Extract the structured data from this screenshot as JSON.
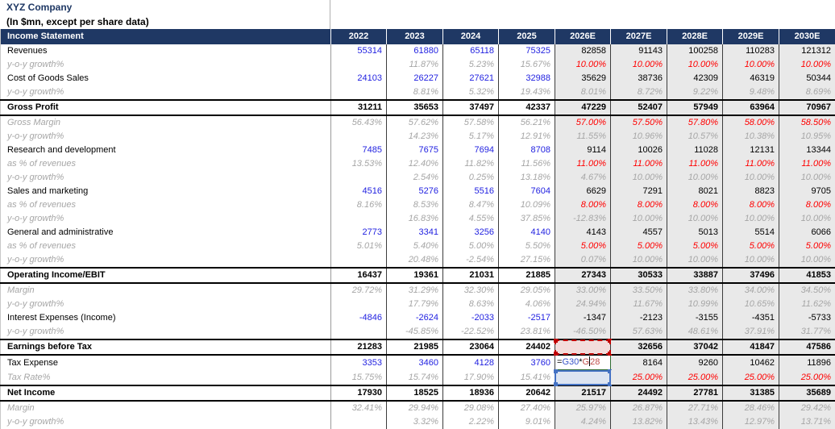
{
  "title": "XYZ Company",
  "subtitle": "(In $mn, except per share data)",
  "colors": {
    "header_navy": "#1F3864",
    "input_blue": "#1F1FE0",
    "muted_gray": "#A6A6A6",
    "assumption_red": "#FF0000",
    "estimate_bg": "#E9E9E9",
    "selection_red": "#C00000",
    "selection_blue": "#4472C4",
    "formula_green": "#2E6B30"
  },
  "header": {
    "label": "Income Statement",
    "years": [
      "2022",
      "2023",
      "2024",
      "2025",
      "2026E",
      "2027E",
      "2028E",
      "2029E",
      "2030E"
    ],
    "estimate_start_index": 4
  },
  "formula": {
    "parts": [
      {
        "t": "=",
        "c": "black"
      },
      {
        "t": "G30",
        "c": "blue"
      },
      {
        "t": "*",
        "c": "black"
      },
      {
        "t": "G",
        "c": "red"
      },
      {
        "cursor": true
      },
      {
        "t": "28",
        "c": "red"
      }
    ]
  },
  "rows": [
    {
      "label": "Revenues",
      "type": "item",
      "cells": [
        {
          "t": "55314",
          "s": "b"
        },
        {
          "t": "61880",
          "s": "b"
        },
        {
          "t": "65118",
          "s": "b"
        },
        {
          "t": "75325",
          "s": "b"
        },
        {
          "t": "82858",
          "s": "k"
        },
        {
          "t": "91143",
          "s": "k"
        },
        {
          "t": "100258",
          "s": "k"
        },
        {
          "t": "110283",
          "s": "k"
        },
        {
          "t": "121312",
          "s": "k"
        }
      ]
    },
    {
      "label": "y-o-y growth%",
      "type": "sub",
      "cells": [
        {
          "t": "",
          "s": "g"
        },
        {
          "t": "11.87%",
          "s": "g"
        },
        {
          "t": "5.23%",
          "s": "g"
        },
        {
          "t": "15.67%",
          "s": "g"
        },
        {
          "t": "10.00%",
          "s": "r"
        },
        {
          "t": "10.00%",
          "s": "r"
        },
        {
          "t": "10.00%",
          "s": "r"
        },
        {
          "t": "10.00%",
          "s": "r"
        },
        {
          "t": "10.00%",
          "s": "r"
        }
      ]
    },
    {
      "label": "Cost of Goods Sales",
      "type": "item",
      "cells": [
        {
          "t": "24103",
          "s": "b"
        },
        {
          "t": "26227",
          "s": "b"
        },
        {
          "t": "27621",
          "s": "b"
        },
        {
          "t": "32988",
          "s": "b"
        },
        {
          "t": "35629",
          "s": "k"
        },
        {
          "t": "38736",
          "s": "k"
        },
        {
          "t": "42309",
          "s": "k"
        },
        {
          "t": "46319",
          "s": "k"
        },
        {
          "t": "50344",
          "s": "k"
        }
      ]
    },
    {
      "label": "y-o-y growth%",
      "type": "sub",
      "cells": [
        {
          "t": "",
          "s": "g"
        },
        {
          "t": "8.81%",
          "s": "g"
        },
        {
          "t": "5.32%",
          "s": "g"
        },
        {
          "t": "19.43%",
          "s": "g"
        },
        {
          "t": "8.01%",
          "s": "g"
        },
        {
          "t": "8.72%",
          "s": "g"
        },
        {
          "t": "9.22%",
          "s": "g"
        },
        {
          "t": "9.48%",
          "s": "g"
        },
        {
          "t": "8.69%",
          "s": "g"
        }
      ]
    },
    {
      "label": "Gross Profit",
      "type": "total",
      "cells": [
        {
          "t": "31211",
          "s": "kb"
        },
        {
          "t": "35653",
          "s": "kb"
        },
        {
          "t": "37497",
          "s": "kb"
        },
        {
          "t": "42337",
          "s": "kb"
        },
        {
          "t": "47229",
          "s": "kb"
        },
        {
          "t": "52407",
          "s": "kb"
        },
        {
          "t": "57949",
          "s": "kb"
        },
        {
          "t": "63964",
          "s": "kb"
        },
        {
          "t": "70967",
          "s": "kb"
        }
      ]
    },
    {
      "label": "Gross Margin",
      "type": "sub",
      "cells": [
        {
          "t": "56.43%",
          "s": "g"
        },
        {
          "t": "57.62%",
          "s": "g"
        },
        {
          "t": "57.58%",
          "s": "g"
        },
        {
          "t": "56.21%",
          "s": "g"
        },
        {
          "t": "57.00%",
          "s": "r"
        },
        {
          "t": "57.50%",
          "s": "r"
        },
        {
          "t": "57.80%",
          "s": "r"
        },
        {
          "t": "58.00%",
          "s": "r"
        },
        {
          "t": "58.50%",
          "s": "r"
        }
      ]
    },
    {
      "label": "y-o-y growth%",
      "type": "sub",
      "cells": [
        {
          "t": "",
          "s": "g"
        },
        {
          "t": "14.23%",
          "s": "g"
        },
        {
          "t": "5.17%",
          "s": "g"
        },
        {
          "t": "12.91%",
          "s": "g"
        },
        {
          "t": "11.55%",
          "s": "g"
        },
        {
          "t": "10.96%",
          "s": "g"
        },
        {
          "t": "10.57%",
          "s": "g"
        },
        {
          "t": "10.38%",
          "s": "g"
        },
        {
          "t": "10.95%",
          "s": "g"
        }
      ]
    },
    {
      "label": "Research and development",
      "type": "item",
      "cells": [
        {
          "t": "7485",
          "s": "b"
        },
        {
          "t": "7675",
          "s": "b"
        },
        {
          "t": "7694",
          "s": "b"
        },
        {
          "t": "8708",
          "s": "b"
        },
        {
          "t": "9114",
          "s": "k"
        },
        {
          "t": "10026",
          "s": "k"
        },
        {
          "t": "11028",
          "s": "k"
        },
        {
          "t": "12131",
          "s": "k"
        },
        {
          "t": "13344",
          "s": "k"
        }
      ]
    },
    {
      "label": "as % of revenues",
      "type": "sub",
      "cells": [
        {
          "t": "13.53%",
          "s": "g"
        },
        {
          "t": "12.40%",
          "s": "g"
        },
        {
          "t": "11.82%",
          "s": "g"
        },
        {
          "t": "11.56%",
          "s": "g"
        },
        {
          "t": "11.00%",
          "s": "r"
        },
        {
          "t": "11.00%",
          "s": "r"
        },
        {
          "t": "11.00%",
          "s": "r"
        },
        {
          "t": "11.00%",
          "s": "r"
        },
        {
          "t": "11.00%",
          "s": "r"
        }
      ]
    },
    {
      "label": "y-o-y growth%",
      "type": "sub",
      "cells": [
        {
          "t": "",
          "s": "g"
        },
        {
          "t": "2.54%",
          "s": "g"
        },
        {
          "t": "0.25%",
          "s": "g"
        },
        {
          "t": "13.18%",
          "s": "g"
        },
        {
          "t": "4.67%",
          "s": "g"
        },
        {
          "t": "10.00%",
          "s": "g"
        },
        {
          "t": "10.00%",
          "s": "g"
        },
        {
          "t": "10.00%",
          "s": "g"
        },
        {
          "t": "10.00%",
          "s": "g"
        }
      ]
    },
    {
      "label": "Sales and marketing",
      "type": "item",
      "cells": [
        {
          "t": "4516",
          "s": "b"
        },
        {
          "t": "5276",
          "s": "b"
        },
        {
          "t": "5516",
          "s": "b"
        },
        {
          "t": "7604",
          "s": "b"
        },
        {
          "t": "6629",
          "s": "k"
        },
        {
          "t": "7291",
          "s": "k"
        },
        {
          "t": "8021",
          "s": "k"
        },
        {
          "t": "8823",
          "s": "k"
        },
        {
          "t": "9705",
          "s": "k"
        }
      ]
    },
    {
      "label": "as % of revenues",
      "type": "sub",
      "cells": [
        {
          "t": "8.16%",
          "s": "g"
        },
        {
          "t": "8.53%",
          "s": "g"
        },
        {
          "t": "8.47%",
          "s": "g"
        },
        {
          "t": "10.09%",
          "s": "g"
        },
        {
          "t": "8.00%",
          "s": "r"
        },
        {
          "t": "8.00%",
          "s": "r"
        },
        {
          "t": "8.00%",
          "s": "r"
        },
        {
          "t": "8.00%",
          "s": "r"
        },
        {
          "t": "8.00%",
          "s": "r"
        }
      ]
    },
    {
      "label": "y-o-y growth%",
      "type": "sub",
      "cells": [
        {
          "t": "",
          "s": "g"
        },
        {
          "t": "16.83%",
          "s": "g"
        },
        {
          "t": "4.55%",
          "s": "g"
        },
        {
          "t": "37.85%",
          "s": "g"
        },
        {
          "t": "-12.83%",
          "s": "g"
        },
        {
          "t": "10.00%",
          "s": "g"
        },
        {
          "t": "10.00%",
          "s": "g"
        },
        {
          "t": "10.00%",
          "s": "g"
        },
        {
          "t": "10.00%",
          "s": "g"
        }
      ]
    },
    {
      "label": "General and administrative",
      "type": "item",
      "cells": [
        {
          "t": "2773",
          "s": "b"
        },
        {
          "t": "3341",
          "s": "b"
        },
        {
          "t": "3256",
          "s": "b"
        },
        {
          "t": "4140",
          "s": "b"
        },
        {
          "t": "4143",
          "s": "k"
        },
        {
          "t": "4557",
          "s": "k"
        },
        {
          "t": "5013",
          "s": "k"
        },
        {
          "t": "5514",
          "s": "k"
        },
        {
          "t": "6066",
          "s": "k"
        }
      ]
    },
    {
      "label": "as % of revenues",
      "type": "sub",
      "cells": [
        {
          "t": "5.01%",
          "s": "g"
        },
        {
          "t": "5.40%",
          "s": "g"
        },
        {
          "t": "5.00%",
          "s": "g"
        },
        {
          "t": "5.50%",
          "s": "g"
        },
        {
          "t": "5.00%",
          "s": "r"
        },
        {
          "t": "5.00%",
          "s": "r"
        },
        {
          "t": "5.00%",
          "s": "r"
        },
        {
          "t": "5.00%",
          "s": "r"
        },
        {
          "t": "5.00%",
          "s": "r"
        }
      ]
    },
    {
      "label": "y-o-y growth%",
      "type": "sub",
      "cells": [
        {
          "t": "",
          "s": "g"
        },
        {
          "t": "20.48%",
          "s": "g"
        },
        {
          "t": "-2.54%",
          "s": "g"
        },
        {
          "t": "27.15%",
          "s": "g"
        },
        {
          "t": "0.07%",
          "s": "g"
        },
        {
          "t": "10.00%",
          "s": "g"
        },
        {
          "t": "10.00%",
          "s": "g"
        },
        {
          "t": "10.00%",
          "s": "g"
        },
        {
          "t": "10.00%",
          "s": "g"
        }
      ]
    },
    {
      "label": "Operating Income/EBIT",
      "type": "total",
      "cells": [
        {
          "t": "16437",
          "s": "kb"
        },
        {
          "t": "19361",
          "s": "kb"
        },
        {
          "t": "21031",
          "s": "kb"
        },
        {
          "t": "21885",
          "s": "kb"
        },
        {
          "t": "27343",
          "s": "kb"
        },
        {
          "t": "30533",
          "s": "kb"
        },
        {
          "t": "33887",
          "s": "kb"
        },
        {
          "t": "37496",
          "s": "kb"
        },
        {
          "t": "41853",
          "s": "kb"
        }
      ]
    },
    {
      "label": "Margin",
      "type": "sub",
      "cells": [
        {
          "t": "29.72%",
          "s": "g"
        },
        {
          "t": "31.29%",
          "s": "g"
        },
        {
          "t": "32.30%",
          "s": "g"
        },
        {
          "t": "29.05%",
          "s": "g"
        },
        {
          "t": "33.00%",
          "s": "g"
        },
        {
          "t": "33.50%",
          "s": "g"
        },
        {
          "t": "33.80%",
          "s": "g"
        },
        {
          "t": "34.00%",
          "s": "g"
        },
        {
          "t": "34.50%",
          "s": "g"
        }
      ]
    },
    {
      "label": "y-o-y growth%",
      "type": "sub",
      "cells": [
        {
          "t": "",
          "s": "g"
        },
        {
          "t": "17.79%",
          "s": "g"
        },
        {
          "t": "8.63%",
          "s": "g"
        },
        {
          "t": "4.06%",
          "s": "g"
        },
        {
          "t": "24.94%",
          "s": "g"
        },
        {
          "t": "11.67%",
          "s": "g"
        },
        {
          "t": "10.99%",
          "s": "g"
        },
        {
          "t": "10.65%",
          "s": "g"
        },
        {
          "t": "11.62%",
          "s": "g"
        }
      ]
    },
    {
      "label": "Interest Expenses (Income)",
      "type": "item",
      "cells": [
        {
          "t": "-4846",
          "s": "b"
        },
        {
          "t": "-2624",
          "s": "b"
        },
        {
          "t": "-2033",
          "s": "b"
        },
        {
          "t": "-2517",
          "s": "b"
        },
        {
          "t": "-1347",
          "s": "k"
        },
        {
          "t": "-2123",
          "s": "k"
        },
        {
          "t": "-3155",
          "s": "k"
        },
        {
          "t": "-4351",
          "s": "k"
        },
        {
          "t": "-5733",
          "s": "k"
        }
      ]
    },
    {
      "label": "y-o-y growth%",
      "type": "sub",
      "cells": [
        {
          "t": "",
          "s": "g"
        },
        {
          "t": "-45.85%",
          "s": "g"
        },
        {
          "t": "-22.52%",
          "s": "g"
        },
        {
          "t": "23.81%",
          "s": "g"
        },
        {
          "t": "-46.50%",
          "s": "g"
        },
        {
          "t": "57.63%",
          "s": "g"
        },
        {
          "t": "48.61%",
          "s": "g"
        },
        {
          "t": "37.91%",
          "s": "g"
        },
        {
          "t": "31.77%",
          "s": "g"
        }
      ]
    },
    {
      "label": "Earnings before Tax",
      "type": "total",
      "cells": [
        {
          "t": "21283",
          "s": "kb"
        },
        {
          "t": "21985",
          "s": "kb"
        },
        {
          "t": "23064",
          "s": "kb"
        },
        {
          "t": "24402",
          "s": "kb"
        },
        {
          "t": "28690",
          "s": "kb",
          "sel": "red"
        },
        {
          "t": "32656",
          "s": "kb"
        },
        {
          "t": "37042",
          "s": "kb"
        },
        {
          "t": "41847",
          "s": "kb"
        },
        {
          "t": "47586",
          "s": "kb"
        }
      ]
    },
    {
      "label": "Tax Expense",
      "type": "item",
      "cells": [
        {
          "t": "3353",
          "s": "b"
        },
        {
          "t": "3460",
          "s": "b"
        },
        {
          "t": "4128",
          "s": "b"
        },
        {
          "t": "3760",
          "s": "b"
        },
        {
          "t": "=G30*G28",
          "s": "k",
          "formula": true
        },
        {
          "t": "8164",
          "s": "k"
        },
        {
          "t": "9260",
          "s": "k"
        },
        {
          "t": "10462",
          "s": "k"
        },
        {
          "t": "11896",
          "s": "k"
        }
      ]
    },
    {
      "label": "Tax Rate%",
      "type": "sub",
      "cells": [
        {
          "t": "15.75%",
          "s": "g"
        },
        {
          "t": "15.74%",
          "s": "g"
        },
        {
          "t": "17.90%",
          "s": "g"
        },
        {
          "t": "15.41%",
          "s": "g"
        },
        {
          "t": "25.00%",
          "s": "r",
          "sel": "blue"
        },
        {
          "t": "25.00%",
          "s": "r"
        },
        {
          "t": "25.00%",
          "s": "r"
        },
        {
          "t": "25.00%",
          "s": "r"
        },
        {
          "t": "25.00%",
          "s": "r"
        }
      ]
    },
    {
      "label": "Net Income",
      "type": "total",
      "cells": [
        {
          "t": "17930",
          "s": "kb"
        },
        {
          "t": "18525",
          "s": "kb"
        },
        {
          "t": "18936",
          "s": "kb"
        },
        {
          "t": "20642",
          "s": "kb"
        },
        {
          "t": "21517",
          "s": "kb"
        },
        {
          "t": "24492",
          "s": "kb"
        },
        {
          "t": "27781",
          "s": "kb"
        },
        {
          "t": "31385",
          "s": "kb"
        },
        {
          "t": "35689",
          "s": "kb"
        }
      ]
    },
    {
      "label": "Margin",
      "type": "sub",
      "cells": [
        {
          "t": "32.41%",
          "s": "g"
        },
        {
          "t": "29.94%",
          "s": "g"
        },
        {
          "t": "29.08%",
          "s": "g"
        },
        {
          "t": "27.40%",
          "s": "g"
        },
        {
          "t": "25.97%",
          "s": "g"
        },
        {
          "t": "26.87%",
          "s": "g"
        },
        {
          "t": "27.71%",
          "s": "g"
        },
        {
          "t": "28.46%",
          "s": "g"
        },
        {
          "t": "29.42%",
          "s": "g"
        }
      ]
    },
    {
      "label": "y-o-y growth%",
      "type": "sub",
      "cells": [
        {
          "t": "",
          "s": "g"
        },
        {
          "t": "3.32%",
          "s": "g"
        },
        {
          "t": "2.22%",
          "s": "g"
        },
        {
          "t": "9.01%",
          "s": "g"
        },
        {
          "t": "4.24%",
          "s": "g"
        },
        {
          "t": "13.82%",
          "s": "g"
        },
        {
          "t": "13.43%",
          "s": "g"
        },
        {
          "t": "12.97%",
          "s": "g"
        },
        {
          "t": "13.71%",
          "s": "g"
        }
      ]
    }
  ]
}
